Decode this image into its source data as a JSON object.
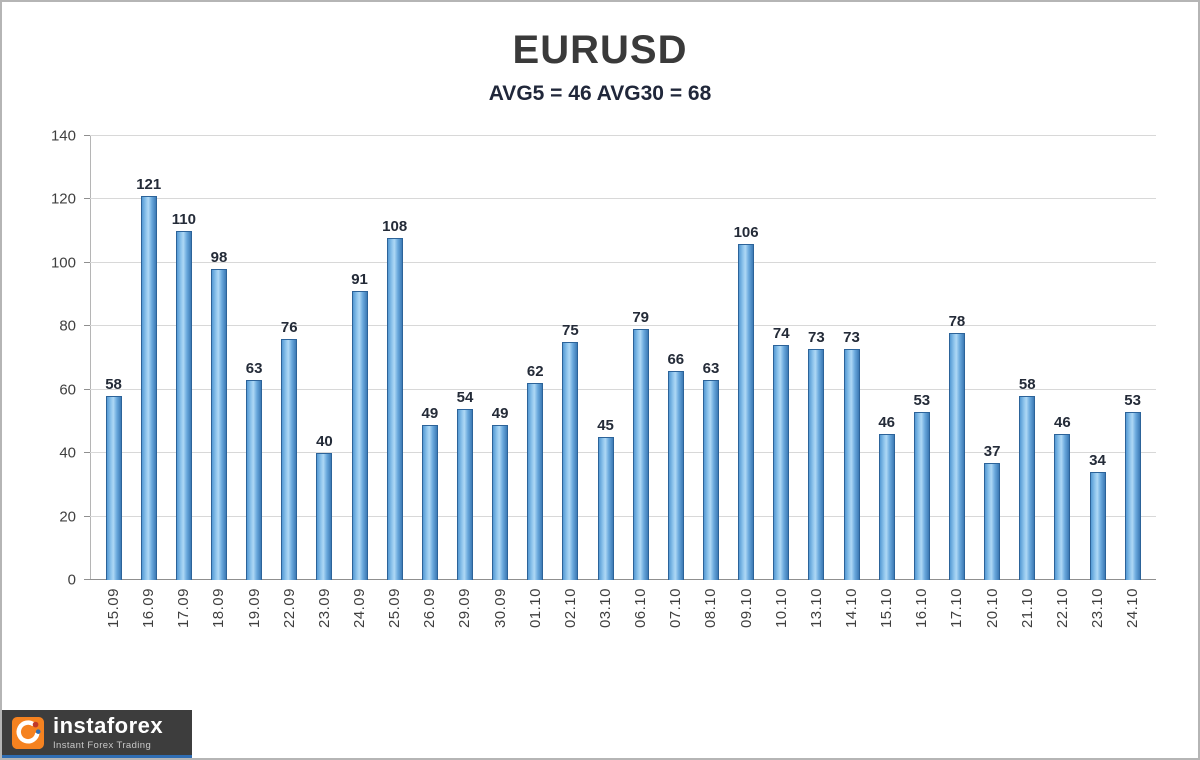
{
  "header": {
    "title": "EURUSD",
    "subtitle": "AVG5 = 46 AVG30 = 68"
  },
  "chart_data": {
    "type": "bar",
    "title": "EURUSD",
    "subtitle": "AVG5 = 46 AVG30 = 68",
    "categories": [
      "15.09",
      "16.09",
      "17.09",
      "18.09",
      "19.09",
      "22.09",
      "23.09",
      "24.09",
      "25.09",
      "26.09",
      "29.09",
      "30.09",
      "01.10",
      "02.10",
      "03.10",
      "06.10",
      "07.10",
      "08.10",
      "09.10",
      "10.10",
      "13.10",
      "14.10",
      "15.10",
      "16.10",
      "17.10",
      "20.10",
      "21.10",
      "22.10",
      "23.10",
      "24.10"
    ],
    "values": [
      58,
      121,
      110,
      98,
      63,
      76,
      40,
      91,
      108,
      49,
      54,
      49,
      62,
      75,
      45,
      79,
      66,
      63,
      106,
      74,
      73,
      73,
      46,
      53,
      78,
      37,
      58,
      46,
      34,
      53
    ],
    "xlabel": "",
    "ylabel": "",
    "ylim": [
      0,
      140
    ],
    "ytick_interval": 20,
    "grid": true,
    "legend": false,
    "value_labels": true,
    "bar_fill_color": "#6aa9dd",
    "bar_border_color": "#2c6399"
  },
  "watermark": {
    "brand": "instaforex",
    "tagline": "Instant Forex Trading",
    "accent_color": "#f58220"
  }
}
